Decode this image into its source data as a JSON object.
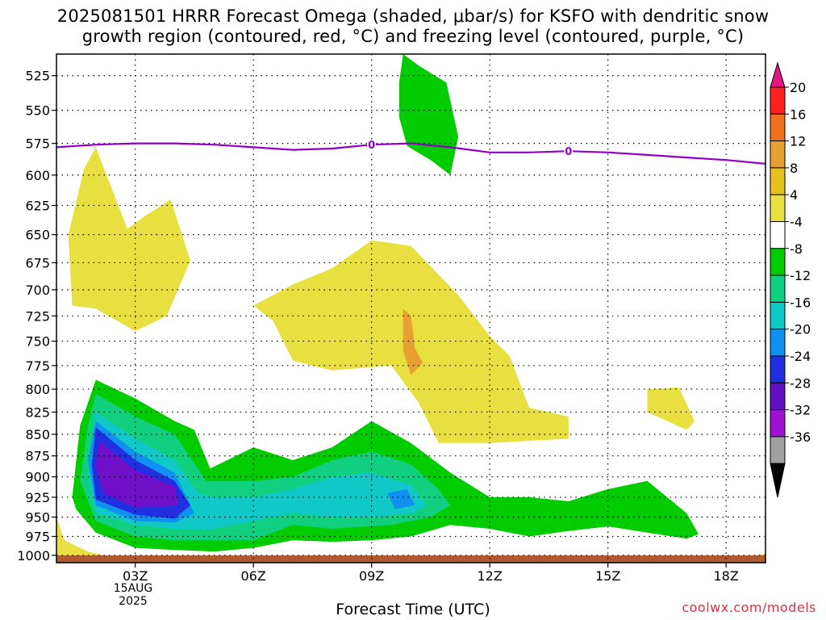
{
  "title": "2025081501 HRRR Forecast Omega (shaded, μbar/s) for KSFO with dendritic snow\ngrowth region (contoured, red, °C) and freezing level (contoured, purple, °C)",
  "footer": "coolwx.com/models",
  "chart_data": {
    "type": "heatmap",
    "title": "2025081501 HRRR Forecast Omega (shaded, μbar/s) for KSFO with dendritic snow growth region (contoured, red, °C) and freezing level (contoured, purple, °C)",
    "xlabel": "Forecast Time (UTC)",
    "ylabel": "",
    "x_ticks": [
      "03Z",
      "06Z",
      "09Z",
      "12Z",
      "15Z",
      "18Z"
    ],
    "x_tick_hours": [
      3,
      6,
      9,
      12,
      15,
      18
    ],
    "x_date_label": "15AUG\n2025",
    "xlim": [
      1,
      19
    ],
    "y_ticks": [
      525,
      550,
      575,
      600,
      625,
      650,
      675,
      700,
      725,
      750,
      775,
      800,
      825,
      850,
      875,
      900,
      925,
      950,
      975,
      1000
    ],
    "ylim": [
      1010,
      510
    ],
    "y_scale": "log-pressure",
    "grid": true,
    "colorbar": {
      "labels": [
        "20",
        "16",
        "12",
        "8",
        "4",
        "-4",
        "-8",
        "-12",
        "-16",
        "-20",
        "-24",
        "-28",
        "-32",
        "-36"
      ],
      "colors": [
        "#ff2020",
        "#f07020",
        "#e8a030",
        "#e8c020",
        "#e8e040",
        "#ffffff",
        "#00cc00",
        "#10d080",
        "#10c8c8",
        "#1090f0",
        "#2030e0",
        "#6010c0",
        "#a010d0",
        "#a0a0a0"
      ],
      "top_color": "#e01880",
      "bottom_color": "#000000"
    },
    "freezing_level": {
      "label": "0",
      "color": "#9000c8",
      "points": [
        [
          1,
          578
        ],
        [
          2,
          576
        ],
        [
          3,
          575
        ],
        [
          4,
          575
        ],
        [
          5,
          576
        ],
        [
          6,
          578
        ],
        [
          7,
          580
        ],
        [
          8,
          579
        ],
        [
          9,
          576
        ],
        [
          10,
          575
        ],
        [
          11,
          578
        ],
        [
          12,
          582
        ],
        [
          13,
          582
        ],
        [
          14,
          581
        ],
        [
          15,
          582
        ],
        [
          16,
          584
        ],
        [
          17,
          586
        ],
        [
          18,
          588
        ],
        [
          19,
          591
        ]
      ]
    },
    "shaded_regions": [
      {
        "value": "-8",
        "color": "#00cc00",
        "points": [
          [
            1.4,
            925
          ],
          [
            1.6,
            840
          ],
          [
            2,
            790
          ],
          [
            3,
            810
          ],
          [
            4,
            835
          ],
          [
            4.5,
            845
          ],
          [
            4.9,
            890
          ],
          [
            6,
            865
          ],
          [
            7,
            880
          ],
          [
            8,
            865
          ],
          [
            9,
            835
          ],
          [
            10,
            860
          ],
          [
            11,
            895
          ],
          [
            12,
            925
          ],
          [
            13,
            925
          ],
          [
            14,
            930
          ],
          [
            15,
            915
          ],
          [
            16,
            905
          ],
          [
            17,
            945
          ],
          [
            17.3,
            972
          ],
          [
            17,
            978
          ],
          [
            16,
            970
          ],
          [
            15,
            962
          ],
          [
            14,
            968
          ],
          [
            13,
            975
          ],
          [
            12,
            965
          ],
          [
            11,
            960
          ],
          [
            10,
            975
          ],
          [
            9,
            980
          ],
          [
            8,
            982
          ],
          [
            7,
            980
          ],
          [
            6,
            990
          ],
          [
            5,
            995
          ],
          [
            4,
            993
          ],
          [
            3,
            990
          ],
          [
            2,
            970
          ],
          [
            1.5,
            940
          ]
        ]
      },
      {
        "value": "-8",
        "color": "#00cc00",
        "points": [
          [
            9.8,
            510
          ],
          [
            10.2,
            518
          ],
          [
            10.9,
            530
          ],
          [
            11.2,
            570
          ],
          [
            11.0,
            600
          ],
          [
            10.5,
            588
          ],
          [
            9.9,
            577
          ],
          [
            9.7,
            555
          ],
          [
            9.7,
            530
          ]
        ]
      },
      {
        "value": "-12",
        "color": "#10d080",
        "points": [
          [
            1.6,
            905
          ],
          [
            1.8,
            840
          ],
          [
            2,
            805
          ],
          [
            3,
            830
          ],
          [
            4,
            850
          ],
          [
            4.3,
            870
          ],
          [
            4.8,
            905
          ],
          [
            6,
            905
          ],
          [
            7,
            900
          ],
          [
            8,
            880
          ],
          [
            9,
            870
          ],
          [
            10,
            885
          ],
          [
            10.7,
            915
          ],
          [
            11,
            935
          ],
          [
            10.5,
            950
          ],
          [
            9.5,
            960
          ],
          [
            8,
            965
          ],
          [
            7,
            960
          ],
          [
            6,
            980
          ],
          [
            5,
            980
          ],
          [
            4,
            980
          ],
          [
            3,
            975
          ],
          [
            2,
            955
          ]
        ]
      },
      {
        "value": "-16",
        "color": "#10c8c8",
        "points": [
          [
            1.8,
            900
          ],
          [
            2,
            825
          ],
          [
            3,
            855
          ],
          [
            4,
            880
          ],
          [
            4.6,
            920
          ],
          [
            5,
            925
          ],
          [
            6,
            925
          ],
          [
            7,
            915
          ],
          [
            8,
            900
          ],
          [
            9,
            895
          ],
          [
            10,
            910
          ],
          [
            10.4,
            935
          ],
          [
            10,
            945
          ],
          [
            9,
            950
          ],
          [
            8,
            950
          ],
          [
            7,
            945
          ],
          [
            6,
            955
          ],
          [
            5,
            965
          ],
          [
            4,
            965
          ],
          [
            3,
            960
          ],
          [
            2,
            945
          ]
        ]
      },
      {
        "value": "-20",
        "color": "#1090f0",
        "points": [
          [
            1.8,
            880
          ],
          [
            2,
            835
          ],
          [
            3,
            870
          ],
          [
            4,
            895
          ],
          [
            4.5,
            945
          ],
          [
            4,
            957
          ],
          [
            3,
            955
          ],
          [
            2,
            935
          ],
          [
            9.4,
            920
          ],
          [
            9.9,
            915
          ],
          [
            10.1,
            935
          ],
          [
            9.6,
            940
          ]
        ]
      },
      {
        "value": "-24",
        "color": "#2030e0",
        "points": [
          [
            1.9,
            885
          ],
          [
            2,
            842
          ],
          [
            3,
            880
          ],
          [
            4,
            905
          ],
          [
            4.4,
            935
          ],
          [
            4,
            952
          ],
          [
            3,
            947
          ],
          [
            2,
            928
          ]
        ]
      },
      {
        "value": "-28",
        "color": "#7010c8",
        "points": [
          [
            2,
            888
          ],
          [
            2.1,
            858
          ],
          [
            3,
            892
          ],
          [
            4,
            912
          ],
          [
            4.1,
            935
          ],
          [
            3,
            938
          ],
          [
            2.2,
            920
          ]
        ]
      },
      {
        "value": "4",
        "color": "#e8e040",
        "points": [
          [
            1.3,
            650
          ],
          [
            1.7,
            595
          ],
          [
            2,
            578
          ],
          [
            2.8,
            645
          ],
          [
            3.2,
            635
          ],
          [
            3.9,
            620
          ],
          [
            4.4,
            673
          ],
          [
            3.8,
            725
          ],
          [
            3,
            740
          ],
          [
            2,
            718
          ],
          [
            1.4,
            715
          ]
        ]
      },
      {
        "value": "4",
        "color": "#e8e040",
        "points": [
          [
            6,
            715
          ],
          [
            7,
            695
          ],
          [
            8,
            680
          ],
          [
            9,
            655
          ],
          [
            10,
            660
          ],
          [
            11.2,
            705
          ],
          [
            12,
            745
          ],
          [
            12.5,
            765
          ],
          [
            13,
            820
          ],
          [
            14,
            830
          ],
          [
            14,
            855
          ],
          [
            12,
            860
          ],
          [
            10.7,
            860
          ],
          [
            10.2,
            815
          ],
          [
            9.5,
            775
          ],
          [
            8,
            780
          ],
          [
            7,
            770
          ],
          [
            6.5,
            730
          ]
        ]
      },
      {
        "value": "4",
        "color": "#e8e040",
        "points": [
          [
            16,
            800
          ],
          [
            16.8,
            798
          ],
          [
            17.2,
            835
          ],
          [
            17,
            845
          ],
          [
            16,
            825
          ]
        ]
      },
      {
        "value": "4",
        "color": "#e8e040",
        "points": [
          [
            1,
            950
          ],
          [
            1.2,
            980
          ],
          [
            1.8,
            995
          ],
          [
            2.6,
            1005
          ],
          [
            1,
            1008
          ]
        ]
      },
      {
        "value": "4",
        "color": "#e8e040",
        "points": [
          [
            17.5,
            1008
          ],
          [
            19,
            998
          ],
          [
            19,
            1008
          ]
        ]
      },
      {
        "value": "8",
        "color": "#e8a030",
        "points": [
          [
            9.8,
            718
          ],
          [
            10,
            725
          ],
          [
            10.1,
            757
          ],
          [
            10.3,
            772
          ],
          [
            10,
            785
          ],
          [
            9.8,
            760
          ]
        ]
      }
    ]
  }
}
